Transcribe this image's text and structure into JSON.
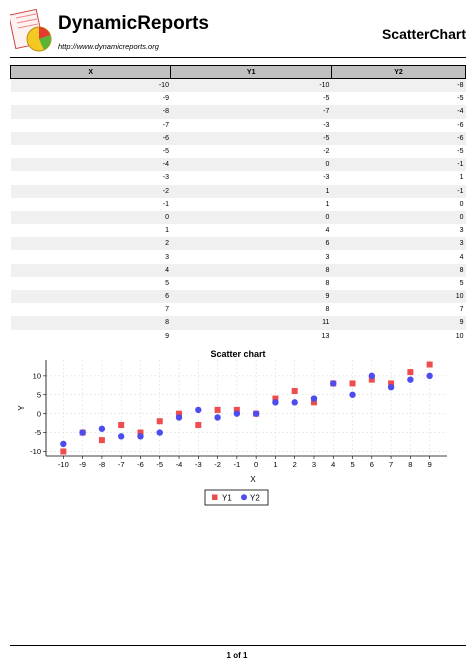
{
  "header": {
    "brand": "DynamicReports",
    "url": "http://www.dynamicreports.org",
    "report_title": "ScatterChart"
  },
  "table": {
    "columns": [
      "X",
      "Y1",
      "Y2"
    ],
    "rows": [
      [
        "-10",
        "-10",
        "-8"
      ],
      [
        "-9",
        "-5",
        "-5"
      ],
      [
        "-8",
        "-7",
        "-4"
      ],
      [
        "-7",
        "-3",
        "-6"
      ],
      [
        "-6",
        "-5",
        "-6"
      ],
      [
        "-5",
        "-2",
        "-5"
      ],
      [
        "-4",
        "0",
        "-1"
      ],
      [
        "-3",
        "-3",
        "1"
      ],
      [
        "-2",
        "1",
        "-1"
      ],
      [
        "-1",
        "1",
        "0"
      ],
      [
        "0",
        "0",
        "0"
      ],
      [
        "1",
        "4",
        "3"
      ],
      [
        "2",
        "6",
        "3"
      ],
      [
        "3",
        "3",
        "4"
      ],
      [
        "4",
        "8",
        "8"
      ],
      [
        "5",
        "8",
        "5"
      ],
      [
        "6",
        "9",
        "10"
      ],
      [
        "7",
        "8",
        "7"
      ],
      [
        "8",
        "11",
        "9"
      ],
      [
        "9",
        "13",
        "10"
      ]
    ]
  },
  "chart_data": {
    "type": "scatter",
    "title": "Scatter chart",
    "xlabel": "X",
    "ylabel": "Y",
    "x": [
      -10,
      -9,
      -8,
      -7,
      -6,
      -5,
      -4,
      -3,
      -2,
      -1,
      0,
      1,
      2,
      3,
      4,
      5,
      6,
      7,
      8,
      9
    ],
    "xlim": [
      -10.9,
      9.9
    ],
    "ylim": [
      -11.2,
      14.2
    ],
    "xticks": [
      -10,
      -9,
      -8,
      -7,
      -6,
      -5,
      -4,
      -3,
      -2,
      -1,
      0,
      1,
      2,
      3,
      4,
      5,
      6,
      7,
      8,
      9
    ],
    "yticks": [
      -10,
      -5,
      0,
      5,
      10
    ],
    "grid": true,
    "legend_position": "bottom",
    "series": [
      {
        "name": "Y1",
        "marker": "square",
        "color": "#ef4d4d",
        "values": [
          -10,
          -5,
          -7,
          -3,
          -5,
          -2,
          0,
          -3,
          1,
          1,
          0,
          4,
          6,
          3,
          8,
          8,
          9,
          8,
          11,
          13
        ]
      },
      {
        "name": "Y2",
        "marker": "circle",
        "color": "#4d4def",
        "values": [
          -8,
          -5,
          -4,
          -6,
          -6,
          -5,
          -1,
          1,
          -1,
          0,
          0,
          3,
          3,
          4,
          8,
          5,
          10,
          7,
          9,
          10
        ]
      }
    ]
  },
  "footer": {
    "page": "1 of 1"
  }
}
